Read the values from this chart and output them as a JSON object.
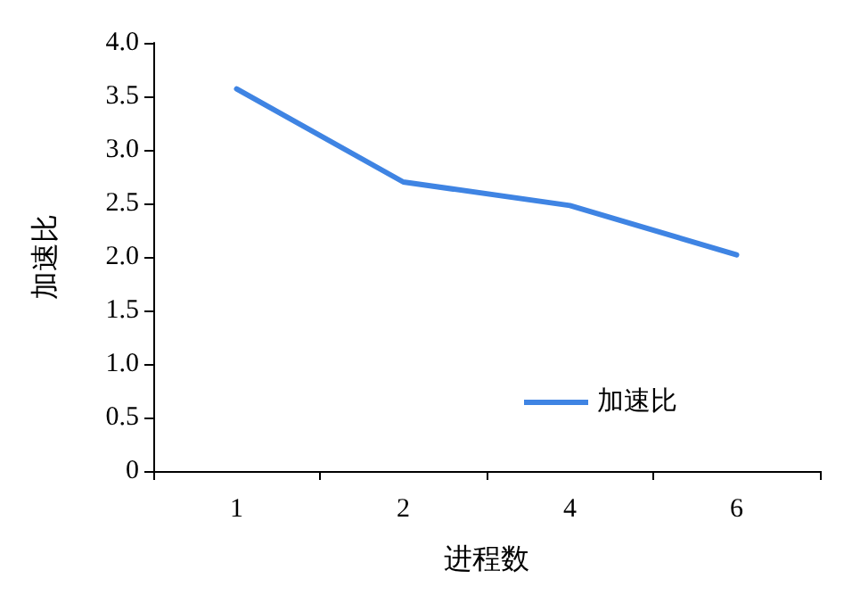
{
  "chart_data": {
    "type": "line",
    "xlabel": "进程数",
    "ylabel": "加速比",
    "categories": [
      "1",
      "2",
      "4",
      "6"
    ],
    "series": [
      {
        "name": "加速比",
        "color": "#3f84e3",
        "values": [
          3.57,
          2.7,
          2.48,
          2.02
        ]
      }
    ],
    "ylim": [
      0,
      4
    ],
    "yticks": [
      0,
      0.5,
      {
        "value": 1,
        "label": "1.0"
      },
      1.5,
      {
        "value": 2,
        "label": "2.0"
      },
      2.5,
      {
        "value": 3,
        "label": "3.0"
      },
      3.5,
      {
        "value": 4,
        "label": "4.0"
      }
    ],
    "grid": false,
    "legend": "bottom right",
    "marker": "none",
    "line_style": "solid"
  }
}
